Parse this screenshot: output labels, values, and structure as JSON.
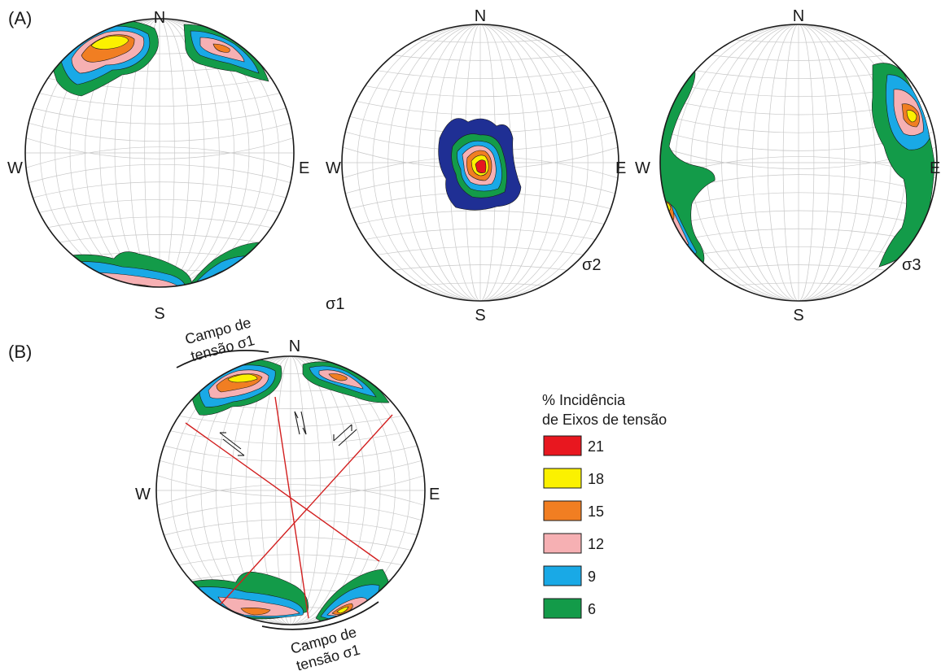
{
  "panels": {
    "a_label": "(A)",
    "b_label": "(B)"
  },
  "directions": {
    "n": "N",
    "s": "S",
    "e": "E",
    "w": "W"
  },
  "stereonets": {
    "sigma1_label": "σ1",
    "sigma2_label": "σ2",
    "sigma3_label": "σ3"
  },
  "annotations": {
    "campo_line1": "Campo de",
    "campo_line2": "tensão σ1"
  },
  "legend": {
    "title_line1": "% Incidência",
    "title_line2": "de Eixos de tensão",
    "items": [
      {
        "value": "21",
        "color": "#e8171f"
      },
      {
        "value": "18",
        "color": "#fbf100"
      },
      {
        "value": "15",
        "color": "#f17e22"
      },
      {
        "value": "12",
        "color": "#f6b0b3"
      },
      {
        "value": "9",
        "color": "#19a9e6"
      },
      {
        "value": "6",
        "color": "#139b49"
      }
    ]
  },
  "colors": {
    "dark_blue": "#1f2f94",
    "fault_line": "#d21f1f"
  }
}
